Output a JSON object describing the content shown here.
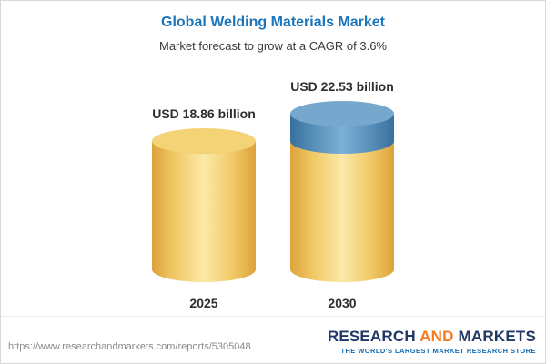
{
  "chart_data": {
    "type": "bar",
    "variant": "3d-cylinder",
    "title": "Global Welding Materials Market",
    "subtitle": "Market forecast to grow at a CAGR of 3.6%",
    "cagr": "3.6%",
    "categories": [
      "2025",
      "2030"
    ],
    "values": [
      18.86,
      22.53
    ],
    "value_labels": [
      "USD 18.86 billion",
      "USD 22.53 billion"
    ],
    "unit": "USD billion",
    "xlabel": "",
    "ylabel": "",
    "ylim": [
      0,
      22.53
    ],
    "grid": false,
    "legend": "none",
    "note": "2030 cylinder shows growth above the 2025 level as a blue top segment"
  },
  "footer": {
    "url": "https://www.researchandmarkets.com/reports/5305048",
    "logo": {
      "research": "RESEARCH",
      "and": "AND",
      "markets": "MARKETS",
      "tagline": "THE WORLD'S LARGEST MARKET RESEARCH STORE"
    }
  },
  "colors": {
    "title_blue": "#1b75bb",
    "text_dark": "#3a3a3a",
    "label_dark": "#2e2e2e",
    "gold_light": "#fce9a8",
    "gold_mid": "#f0c965",
    "gold_dark": "#dda23c",
    "gold_cap": "#f4d276",
    "blue_light": "#7db0d6",
    "blue_mid": "#5b92bc",
    "blue_dark": "#39709e",
    "blue_cap": "#76a7cc",
    "url_gray": "#8a8a8a",
    "logo_navy": "#203864",
    "logo_orange": "#f47b20",
    "tagline_blue": "#0f6cb6",
    "border_gray": "#d8d8d8"
  }
}
